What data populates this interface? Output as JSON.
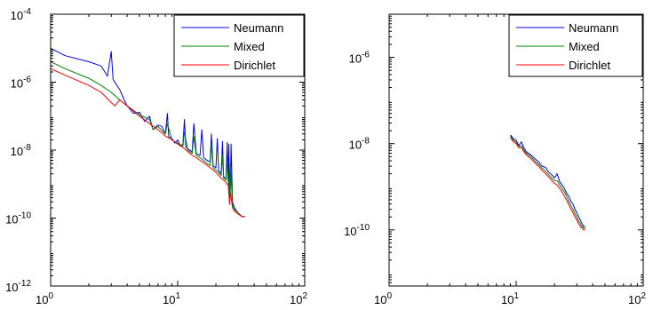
{
  "chart_data": [
    {
      "type": "line",
      "title": "",
      "xlabel": "",
      "ylabel": "",
      "xscale": "log",
      "yscale": "log",
      "xlim": [
        1,
        100
      ],
      "ylim": [
        1e-12,
        0.0001
      ],
      "x_ticks": [
        {
          "value": 1,
          "base": "10",
          "exp": "0"
        },
        {
          "value": 10,
          "base": "10",
          "exp": "1"
        },
        {
          "value": 100,
          "base": "10",
          "exp": "2"
        }
      ],
      "y_ticks": [
        {
          "value": 1e-12,
          "base": "10",
          "exp": "-12"
        },
        {
          "value": 1e-10,
          "base": "10",
          "exp": "-10"
        },
        {
          "value": 1e-08,
          "base": "10",
          "exp": "-8"
        },
        {
          "value": 1e-06,
          "base": "10",
          "exp": "-6"
        },
        {
          "value": 0.0001,
          "base": "10",
          "exp": "-4"
        }
      ],
      "legend_position": "top-right",
      "series": [
        {
          "name": "Neumann",
          "color": "#0000ff",
          "x": [
            1,
            1.3,
            2,
            2.5,
            2.8,
            3,
            3.1,
            3.2,
            3.5,
            3.8,
            4,
            4.5,
            5,
            5.5,
            6,
            6.2,
            6.4,
            7,
            7.5,
            8,
            8.3,
            8.5,
            9,
            9.5,
            10,
            10.5,
            11,
            11.3,
            11.6,
            12,
            13,
            13.4,
            14,
            15,
            15.5,
            16,
            17,
            18,
            18.4,
            19,
            20,
            20.5,
            21,
            22,
            22.5,
            23,
            24,
            24.5,
            25,
            25.3,
            25.6,
            26,
            26.3,
            27,
            28,
            30,
            32,
            34
          ],
          "y": [
            1e-05,
            6e-06,
            4e-06,
            3e-06,
            1.5e-06,
            8e-06,
            1.2e-06,
            1e-06,
            6e-07,
            3e-07,
            2e-07,
            1.2e-07,
            1.3e-07,
            7e-08,
            1e-07,
            6e-08,
            4e-08,
            5.5e-08,
            5e-08,
            3e-08,
            1.2e-07,
            2.5e-08,
            2.2e-08,
            1.6e-08,
            2e-08,
            1.3e-08,
            1.5e-08,
            8e-08,
            1.2e-08,
            1.1e-08,
            9e-09,
            6e-08,
            8e-09,
            7e-09,
            4e-08,
            6e-09,
            5e-09,
            4.5e-09,
            3e-08,
            3.5e-09,
            3e-09,
            2.2e-08,
            2.5e-09,
            2e-09,
            1.8e-08,
            1.6e-09,
            1.5e-09,
            1.7e-08,
            1.2e-09,
            1.5e-08,
            3e-10,
            8e-10,
            1.5e-08,
            3e-10,
            2e-10,
            1.4e-10,
            1.1e-10,
            1.1e-10
          ]
        },
        {
          "name": "Mixed",
          "color": "#008000",
          "x": [
            1,
            1.3,
            2,
            2.5,
            3,
            3.5,
            4,
            5,
            6,
            6.4,
            7,
            8,
            8.3,
            9,
            10,
            11,
            11.3,
            12,
            13,
            13.4,
            14,
            15,
            16,
            17,
            18,
            18.4,
            19,
            20,
            21,
            22,
            22.5,
            23,
            24,
            24.5,
            25,
            25.6,
            26,
            27,
            28,
            30,
            32,
            34
          ],
          "y": [
            4e-06,
            2.5e-06,
            1.3e-06,
            8e-07,
            5e-07,
            3e-07,
            2e-07,
            1.1e-07,
            8e-08,
            4e-08,
            5e-08,
            3e-08,
            6e-08,
            2e-08,
            1.6e-08,
            1.3e-08,
            3.5e-08,
            1e-08,
            8e-09,
            2.5e-08,
            7e-09,
            6e-09,
            5e-09,
            4e-09,
            3.5e-09,
            1.5e-08,
            3e-09,
            2.6e-09,
            2.2e-09,
            1.8e-09,
            7e-09,
            1.5e-09,
            1.3e-09,
            5e-09,
            1.1e-09,
            3e-10,
            4e-09,
            2.5e-10,
            1.8e-10,
            1.4e-10,
            1.1e-10,
            1.1e-10
          ]
        },
        {
          "name": "Dirichlet",
          "color": "#ff0000",
          "x": [
            1,
            1.3,
            2,
            2.5,
            3,
            3.2,
            3.5,
            4,
            5,
            6,
            7,
            8,
            9,
            10,
            11,
            12,
            13,
            14,
            15,
            16,
            17,
            18,
            19,
            20,
            21,
            22,
            23,
            24,
            25,
            25.6,
            26,
            27,
            28,
            30,
            32,
            34
          ],
          "y": [
            2.5e-06,
            1.6e-06,
            8e-07,
            5e-07,
            2.5e-07,
            2e-07,
            3e-07,
            2e-07,
            1e-07,
            6e-08,
            4e-08,
            2.6e-08,
            2e-08,
            1.5e-08,
            1.2e-08,
            9e-09,
            7e-09,
            6e-09,
            5e-09,
            4.2e-09,
            3.6e-09,
            3e-09,
            2.6e-09,
            2.2e-09,
            1.8e-09,
            1.5e-09,
            1.3e-09,
            1.1e-09,
            9e-10,
            2.5e-10,
            6e-10,
            2e-10,
            1.6e-10,
            1.3e-10,
            1.1e-10,
            1.1e-10
          ]
        }
      ]
    },
    {
      "type": "line",
      "title": "",
      "xlabel": "",
      "ylabel": "",
      "xscale": "log",
      "yscale": "log",
      "xlim": [
        1,
        100
      ],
      "ylim": [
        5e-12,
        1e-05
      ],
      "x_ticks": [
        {
          "value": 1,
          "base": "10",
          "exp": "0"
        },
        {
          "value": 10,
          "base": "10",
          "exp": "1"
        },
        {
          "value": 100,
          "base": "10",
          "exp": "2"
        }
      ],
      "y_ticks": [
        {
          "value": 1e-10,
          "base": "10",
          "exp": "-10"
        },
        {
          "value": 1e-08,
          "base": "10",
          "exp": "-8"
        },
        {
          "value": 1e-06,
          "base": "10",
          "exp": "-6"
        }
      ],
      "legend_position": "top-right",
      "series": [
        {
          "name": "Neumann",
          "color": "#0000ff",
          "x": [
            9,
            9.5,
            10,
            10.5,
            11,
            11.5,
            12,
            13,
            14,
            15,
            16,
            17,
            18,
            19,
            20,
            21,
            22,
            23,
            24,
            25,
            26,
            27,
            28,
            29,
            30,
            31,
            32,
            33,
            34,
            35
          ],
          "y": [
            1.6e-08,
            1.3e-08,
            1.2e-08,
            9e-09,
            1.1e-08,
            8e-09,
            6.5e-09,
            5.5e-09,
            4.5e-09,
            3.8e-09,
            3e-09,
            2.8e-09,
            2.2e-09,
            1.9e-09,
            1.6e-09,
            2e-09,
            1.3e-09,
            1.1e-09,
            9e-10,
            7e-10,
            6e-10,
            4.5e-10,
            4e-10,
            3e-10,
            2.5e-10,
            2e-10,
            1.7e-10,
            1.4e-10,
            1.2e-10,
            1.2e-10
          ]
        },
        {
          "name": "Mixed",
          "color": "#008000",
          "x": [
            9,
            9.5,
            10,
            10.5,
            11,
            11.5,
            12,
            13,
            14,
            15,
            16,
            17,
            18,
            19,
            20,
            21,
            22,
            23,
            24,
            25,
            26,
            27,
            28,
            29,
            30,
            31,
            32,
            33,
            34,
            35
          ],
          "y": [
            1.5e-08,
            1.2e-08,
            1.1e-08,
            8.5e-09,
            9e-09,
            7e-09,
            6e-09,
            5e-09,
            4e-09,
            3.3e-09,
            2.7e-09,
            2.3e-09,
            1.9e-09,
            1.6e-09,
            1.4e-09,
            1.4e-09,
            1.1e-09,
            9e-10,
            7.5e-10,
            6e-10,
            4.5e-10,
            3.6e-10,
            3e-10,
            2.4e-10,
            2e-10,
            1.6e-10,
            1.4e-10,
            1.2e-10,
            1.1e-10,
            1.1e-10
          ]
        },
        {
          "name": "Dirichlet",
          "color": "#ff0000",
          "x": [
            9,
            9.5,
            10,
            10.5,
            11,
            11.5,
            12,
            13,
            14,
            15,
            16,
            17,
            18,
            19,
            20,
            21,
            22,
            23,
            24,
            25,
            26,
            27,
            28,
            29,
            30,
            31,
            32,
            33,
            34,
            35
          ],
          "y": [
            1.4e-08,
            1.1e-08,
            1e-08,
            8e-09,
            8e-09,
            6.5e-09,
            5.5e-09,
            4.5e-09,
            3.6e-09,
            3e-09,
            2.4e-09,
            2e-09,
            1.7e-09,
            1.4e-09,
            1.2e-09,
            1.1e-09,
            9e-10,
            7.5e-10,
            6e-10,
            4.8e-10,
            3.8e-10,
            3e-10,
            2.5e-10,
            2e-10,
            1.7e-10,
            1.4e-10,
            1.2e-10,
            1.1e-10,
            1e-10,
            1e-10
          ]
        }
      ]
    }
  ]
}
